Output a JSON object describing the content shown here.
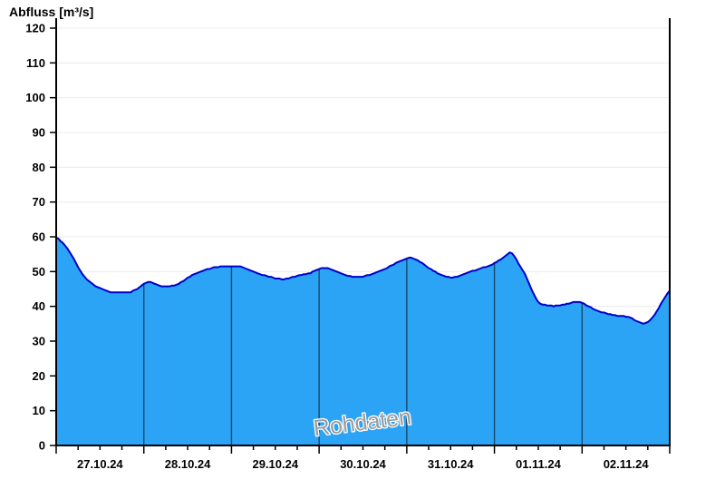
{
  "colors": {
    "fill": "#2BA4F6",
    "line": "#0000CD",
    "grid": "#ECECEC",
    "axis": "#000000",
    "day_line": "#1A4965",
    "watermark": "#9C9C9C",
    "watermark_halo": "#FFFFFF",
    "text": "#000000"
  },
  "watermark": {
    "text": "Rohdaten"
  },
  "chart_data": {
    "type": "area",
    "title": "Abfluss [m³/s]",
    "ylabel": "Abfluss [m³/s]",
    "series_name": "Rohdaten",
    "unit": "m³/s",
    "ylim": [
      0,
      120
    ],
    "yticks": [
      0,
      10,
      20,
      30,
      40,
      50,
      60,
      70,
      80,
      90,
      100,
      110,
      120
    ],
    "grid": "horizontal",
    "x_range_days": [
      0,
      7
    ],
    "minor_ticks_per_day": 3,
    "day_labels": [
      "27.10.24",
      "28.10.24",
      "29.10.24",
      "30.10.24",
      "31.10.24",
      "01.11.24",
      "02.11.24"
    ],
    "points_t_v": [
      [
        0.0,
        59.8
      ],
      [
        0.03,
        59.3
      ],
      [
        0.06,
        58.6
      ],
      [
        0.1,
        57.5
      ],
      [
        0.14,
        56.1
      ],
      [
        0.19,
        54.3
      ],
      [
        0.23,
        52.3
      ],
      [
        0.27,
        50.4
      ],
      [
        0.31,
        48.9
      ],
      [
        0.35,
        47.8
      ],
      [
        0.39,
        47.0
      ],
      [
        0.44,
        46.0
      ],
      [
        0.5,
        45.2
      ],
      [
        0.56,
        44.6
      ],
      [
        0.62,
        44.1
      ],
      [
        0.68,
        43.9
      ],
      [
        0.76,
        43.9
      ],
      [
        0.85,
        44.1
      ],
      [
        0.91,
        44.8
      ],
      [
        0.96,
        45.8
      ],
      [
        1.01,
        46.7
      ],
      [
        1.05,
        47.0
      ],
      [
        1.1,
        46.8
      ],
      [
        1.14,
        46.3
      ],
      [
        1.18,
        45.9
      ],
      [
        1.24,
        45.7
      ],
      [
        1.3,
        45.8
      ],
      [
        1.37,
        46.2
      ],
      [
        1.43,
        47.0
      ],
      [
        1.49,
        48.0
      ],
      [
        1.55,
        48.9
      ],
      [
        1.61,
        49.6
      ],
      [
        1.67,
        50.3
      ],
      [
        1.74,
        50.8
      ],
      [
        1.8,
        51.2
      ],
      [
        1.86,
        51.4
      ],
      [
        1.94,
        51.5
      ],
      [
        2.03,
        51.6
      ],
      [
        2.09,
        51.5
      ],
      [
        2.14,
        51.2
      ],
      [
        2.19,
        50.6
      ],
      [
        2.24,
        50.0
      ],
      [
        2.3,
        49.4
      ],
      [
        2.36,
        49.0
      ],
      [
        2.42,
        48.6
      ],
      [
        2.48,
        48.2
      ],
      [
        2.54,
        47.9
      ],
      [
        2.6,
        47.8
      ],
      [
        2.65,
        48.0
      ],
      [
        2.71,
        48.5
      ],
      [
        2.77,
        48.9
      ],
      [
        2.83,
        49.2
      ],
      [
        2.9,
        49.6
      ],
      [
        2.96,
        50.3
      ],
      [
        3.01,
        50.9
      ],
      [
        3.06,
        51.1
      ],
      [
        3.1,
        51.0
      ],
      [
        3.15,
        50.5
      ],
      [
        3.21,
        50.0
      ],
      [
        3.27,
        49.4
      ],
      [
        3.33,
        48.8
      ],
      [
        3.39,
        48.5
      ],
      [
        3.45,
        48.4
      ],
      [
        3.52,
        48.7
      ],
      [
        3.58,
        49.1
      ],
      [
        3.64,
        49.6
      ],
      [
        3.7,
        50.2
      ],
      [
        3.76,
        50.9
      ],
      [
        3.83,
        51.8
      ],
      [
        3.89,
        52.6
      ],
      [
        3.95,
        53.3
      ],
      [
        4.0,
        53.8
      ],
      [
        4.04,
        54.0
      ],
      [
        4.08,
        53.6
      ],
      [
        4.14,
        53.0
      ],
      [
        4.19,
        52.2
      ],
      [
        4.24,
        51.3
      ],
      [
        4.29,
        50.4
      ],
      [
        4.34,
        49.7
      ],
      [
        4.4,
        49.0
      ],
      [
        4.47,
        48.4
      ],
      [
        4.53,
        48.3
      ],
      [
        4.59,
        48.7
      ],
      [
        4.65,
        49.3
      ],
      [
        4.71,
        49.9
      ],
      [
        4.78,
        50.4
      ],
      [
        4.84,
        50.9
      ],
      [
        4.9,
        51.3
      ],
      [
        4.96,
        51.9
      ],
      [
        5.02,
        52.7
      ],
      [
        5.09,
        53.7
      ],
      [
        5.14,
        54.7
      ],
      [
        5.18,
        55.5
      ],
      [
        5.22,
        54.8
      ],
      [
        5.26,
        53.0
      ],
      [
        5.3,
        51.2
      ],
      [
        5.35,
        49.2
      ],
      [
        5.39,
        46.8
      ],
      [
        5.43,
        44.5
      ],
      [
        5.47,
        42.4
      ],
      [
        5.51,
        41.0
      ],
      [
        5.55,
        40.5
      ],
      [
        5.61,
        40.2
      ],
      [
        5.68,
        40.1
      ],
      [
        5.74,
        40.3
      ],
      [
        5.8,
        40.6
      ],
      [
        5.86,
        40.9
      ],
      [
        5.92,
        41.3
      ],
      [
        5.97,
        41.2
      ],
      [
        6.01,
        40.9
      ],
      [
        6.06,
        40.2
      ],
      [
        6.12,
        39.4
      ],
      [
        6.18,
        38.7
      ],
      [
        6.24,
        38.2
      ],
      [
        6.31,
        37.7
      ],
      [
        6.37,
        37.4
      ],
      [
        6.43,
        37.2
      ],
      [
        6.49,
        37.2
      ],
      [
        6.54,
        36.8
      ],
      [
        6.6,
        36.1
      ],
      [
        6.65,
        35.5
      ],
      [
        6.7,
        35.0
      ],
      [
        6.74,
        35.3
      ],
      [
        6.78,
        36.0
      ],
      [
        6.82,
        37.4
      ],
      [
        6.87,
        39.3
      ],
      [
        6.91,
        41.2
      ],
      [
        6.95,
        42.8
      ],
      [
        6.98,
        43.9
      ],
      [
        7.0,
        44.4
      ]
    ]
  }
}
